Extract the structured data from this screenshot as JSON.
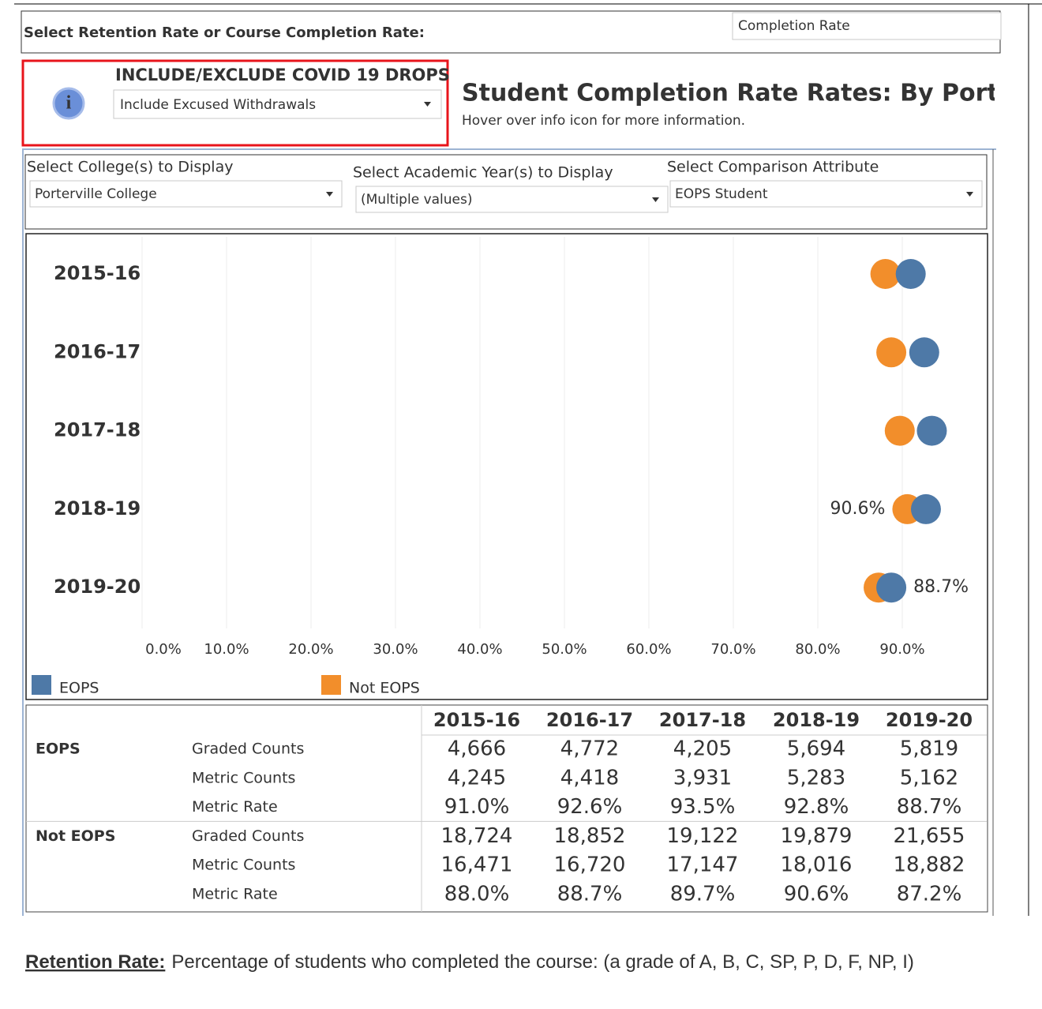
{
  "header": {
    "prompt": "Select Retention Rate or Course Completion Rate:",
    "metric_select": "Completion Rate"
  },
  "covid_filter": {
    "label": "INCLUDE/EXCLUDE COVID 19 DROPS",
    "value": "Include Excused Withdrawals"
  },
  "title": "Student Completion Rate Rates: By Porter",
  "subtitle": "Hover over info icon for more information.",
  "filters": [
    {
      "label": "Select College(s) to Display",
      "value": "Porterville College"
    },
    {
      "label": "Select Academic Year(s) to Display",
      "value": "(Multiple values)"
    },
    {
      "label": "Select Comparison Attribute",
      "value": "EOPS Student"
    }
  ],
  "chart_data": {
    "type": "dot",
    "categories": [
      "2015-16",
      "2016-17",
      "2017-18",
      "2018-19",
      "2019-20"
    ],
    "series": [
      {
        "name": "EOPS",
        "color": "#4e79a7",
        "values": [
          91.0,
          92.6,
          93.5,
          92.8,
          88.7
        ],
        "value_labels": [
          null,
          null,
          null,
          null,
          "88.7%"
        ]
      },
      {
        "name": "Not EOPS",
        "color": "#f28e2b",
        "values": [
          88.0,
          88.7,
          89.7,
          90.6,
          87.2
        ],
        "value_labels": [
          null,
          null,
          null,
          "90.6%",
          null
        ]
      }
    ],
    "xlim": [
      0,
      100
    ],
    "xticks": [
      {
        "value": 0,
        "label": "0.0%"
      },
      {
        "value": 10,
        "label": "10.0%"
      },
      {
        "value": 20,
        "label": "20.0%"
      },
      {
        "value": 30,
        "label": "30.0%"
      },
      {
        "value": 40,
        "label": "40.0%"
      },
      {
        "value": 50,
        "label": "50.0%"
      },
      {
        "value": 60,
        "label": "60.0%"
      },
      {
        "value": 70,
        "label": "70.0%"
      },
      {
        "value": 80,
        "label": "80.0%"
      },
      {
        "value": 90,
        "label": "90.0%"
      }
    ],
    "grid": true,
    "legend": "bottom"
  },
  "table": {
    "groups": [
      {
        "name": "EOPS",
        "rows": [
          {
            "metric": "Graded Counts",
            "values": [
              "4,666",
              "4,772",
              "4,205",
              "5,694",
              "5,819"
            ]
          },
          {
            "metric": "Metric Counts",
            "values": [
              "4,245",
              "4,418",
              "3,931",
              "5,283",
              "5,162"
            ]
          },
          {
            "metric": "Metric Rate",
            "values": [
              "91.0%",
              "92.6%",
              "93.5%",
              "92.8%",
              "88.7%"
            ]
          }
        ]
      },
      {
        "name": "Not EOPS",
        "rows": [
          {
            "metric": "Graded Counts",
            "values": [
              "18,724",
              "18,852",
              "19,122",
              "19,879",
              "21,655"
            ]
          },
          {
            "metric": "Metric Counts",
            "values": [
              "16,471",
              "16,720",
              "17,147",
              "18,016",
              "18,882"
            ]
          },
          {
            "metric": "Metric Rate",
            "values": [
              "88.0%",
              "88.7%",
              "89.7%",
              "90.6%",
              "87.2%"
            ]
          }
        ]
      }
    ]
  },
  "footer": {
    "term": "Retention Rate:",
    "definition": "Percentage of students who completed the course: (a grade of A, B, C, SP, P, D, F, NP, I)"
  }
}
